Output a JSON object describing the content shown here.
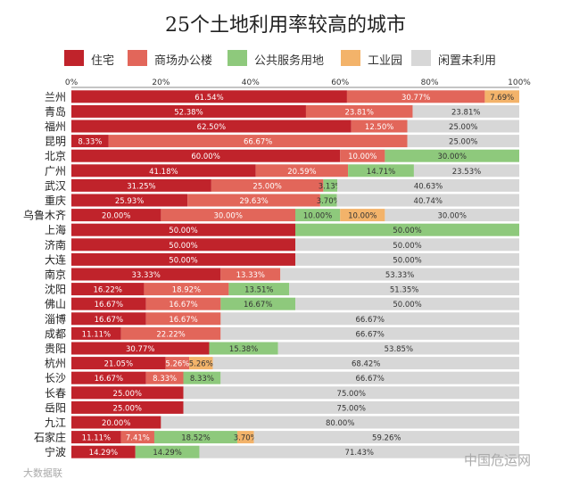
{
  "chart_data": {
    "type": "bar",
    "stacked": true,
    "orientation": "horizontal",
    "title": "25个土地利用率较高的城市",
    "xlim": [
      0,
      100
    ],
    "x_ticks": [
      "0%",
      "20%",
      "40%",
      "60%",
      "80%",
      "100%"
    ],
    "legend_position": "top",
    "categories": [
      "兰州",
      "青岛",
      "福州",
      "昆明",
      "北京",
      "广州",
      "武汉",
      "重庆",
      "乌鲁木齐",
      "上海",
      "济南",
      "大连",
      "南京",
      "沈阳",
      "佛山",
      "淄博",
      "成都",
      "贵阳",
      "杭州",
      "长沙",
      "长春",
      "岳阳",
      "九江",
      "石家庄",
      "宁波"
    ],
    "series": [
      {
        "name": "住宅",
        "color": "#c0232b",
        "values": [
          61.54,
          52.38,
          62.5,
          8.33,
          60.0,
          41.18,
          31.25,
          25.93,
          20.0,
          50.0,
          50.0,
          50.0,
          33.33,
          16.22,
          16.67,
          16.67,
          11.11,
          30.77,
          21.05,
          16.67,
          25.0,
          25.0,
          20.0,
          11.11,
          14.29
        ],
        "labels": [
          "61.54%",
          "52.38%",
          "62.50%",
          "8.33%",
          "60.00%",
          "41.18%",
          "31.25%",
          "25.93%",
          "20.00%",
          "50.00%",
          "50.00%",
          "50.00%",
          "33.33%",
          "16.22%",
          "16.67%",
          "16.67%",
          "11.11%",
          "30.77%",
          "21.05%",
          "16.67%",
          "25.00%",
          "25.00%",
          "20.00%",
          "11.11%",
          "14.29%"
        ]
      },
      {
        "name": "商场办公楼",
        "color": "#e2665a",
        "values": [
          30.77,
          23.81,
          12.5,
          66.67,
          10.0,
          20.59,
          25.0,
          29.63,
          30.0,
          0,
          0,
          0,
          13.33,
          18.92,
          16.67,
          16.67,
          22.22,
          0,
          5.26,
          8.33,
          0,
          0,
          0,
          7.41,
          0
        ],
        "labels": [
          "30.77%",
          "23.81%",
          "12.50%",
          "66.67%",
          "10.00%",
          "20.59%",
          "25.00%",
          "29.63%",
          "30.00%",
          "",
          "",
          "",
          "13.33%",
          "18.92%",
          "16.67%",
          "16.67%",
          "22.22%",
          "",
          "5.26%",
          "8.33%",
          "",
          "",
          "",
          "7.41%",
          ""
        ]
      },
      {
        "name": "公共服务用地",
        "color": "#8ec97c",
        "values": [
          0,
          0,
          0,
          0,
          30.0,
          14.71,
          3.13,
          3.7,
          10.0,
          50.0,
          0,
          0,
          0,
          13.51,
          16.67,
          0,
          0,
          15.38,
          0,
          8.33,
          0,
          0,
          0,
          18.52,
          14.29
        ],
        "labels": [
          "",
          "",
          "",
          "",
          "30.00%",
          "14.71%",
          "3.13%",
          "3.70%",
          "10.00%",
          "50.00%",
          "",
          "",
          "",
          "13.51%",
          "16.67%",
          "",
          "",
          "15.38%",
          "",
          "8.33%",
          "",
          "",
          "",
          "18.52%",
          "14.29%"
        ]
      },
      {
        "name": "工业园",
        "color": "#f3b36a",
        "values": [
          7.69,
          0,
          0,
          0,
          0,
          0,
          0,
          0,
          10.0,
          0,
          0,
          0,
          0,
          0,
          0,
          0,
          0,
          0,
          5.26,
          0,
          0,
          0,
          0,
          3.7,
          0
        ],
        "labels": [
          "7.69%",
          "",
          "",
          "",
          "",
          "",
          "",
          "",
          "10.00%",
          "",
          "",
          "",
          "",
          "",
          "",
          "",
          "",
          "",
          "5.26%",
          "",
          "",
          "",
          "",
          "3.70%",
          ""
        ]
      },
      {
        "name": "闲置未利用",
        "color": "#d7d7d7",
        "values": [
          0,
          23.81,
          25.0,
          25.0,
          0,
          23.53,
          40.63,
          40.74,
          30.0,
          0,
          50.0,
          50.0,
          53.33,
          51.35,
          50.0,
          66.67,
          66.67,
          53.85,
          68.42,
          66.67,
          75.0,
          75.0,
          80.0,
          59.26,
          71.43
        ],
        "labels": [
          "",
          "23.81%",
          "25.00%",
          "25.00%",
          "",
          "23.53%",
          "40.63%",
          "40.74%",
          "30.00%",
          "",
          "50.00%",
          "50.00%",
          "53.33%",
          "51.35%",
          "50.00%",
          "66.67%",
          "66.67%",
          "53.85%",
          "68.42%",
          "66.67%",
          "75.00%",
          "75.00%",
          "80.00%",
          "59.26%",
          "71.43%"
        ]
      }
    ]
  },
  "watermarks": {
    "left": "大数据联",
    "right": "中国危运网"
  }
}
